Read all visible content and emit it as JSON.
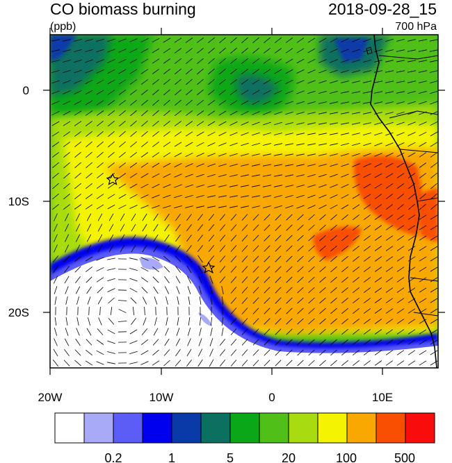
{
  "title": "CO biomass burning",
  "units": "(ppb)",
  "datetime": "2018-09-28_15",
  "level": "700 hPa",
  "lon_labels": [
    "20W",
    "10W",
    "0",
    "10E"
  ],
  "lat_labels": [
    "0",
    "10S",
    "20S"
  ],
  "colorbar": {
    "colors": [
      "#ffffff",
      "#a8aaf8",
      "#5c5cf6",
      "#0000ee",
      "#0a3aa8",
      "#0b7060",
      "#0aa818",
      "#50c018",
      "#a8dc10",
      "#f4f400",
      "#f8a800",
      "#f85000",
      "#f80c0c"
    ],
    "labels": [
      "0.2",
      "1",
      "5",
      "20",
      "100",
      "500"
    ]
  },
  "markers": [
    {
      "name": "star-marker-1",
      "symbol": "star"
    },
    {
      "name": "star-marker-2",
      "symbol": "star"
    }
  ]
}
